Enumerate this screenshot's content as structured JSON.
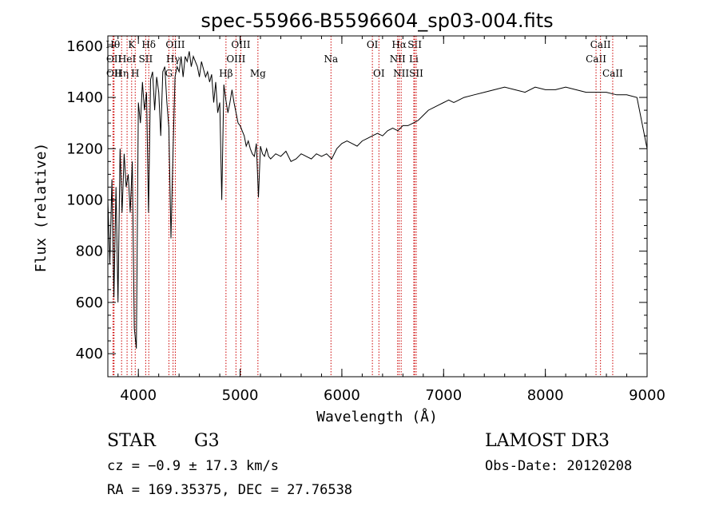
{
  "chart_data": {
    "type": "line",
    "title": "spec-55966-B5596604_sp03-004.fits",
    "xlabel": "Wavelength (Å)",
    "ylabel": "Flux (relative)",
    "xlim": [
      3700,
      9000
    ],
    "ylim": [
      310,
      1640
    ],
    "xticks": [
      4000,
      5000,
      6000,
      7000,
      8000,
      9000
    ],
    "yticks": [
      400,
      600,
      800,
      1000,
      1200,
      1400,
      1600
    ],
    "grid": false,
    "line_color": "#000000",
    "marker_color": "#cc0000",
    "series": [
      {
        "values_x": [
          3700,
          3720,
          3740,
          3760,
          3780,
          3800,
          3820,
          3840,
          3860,
          3880,
          3900,
          3920,
          3940,
          3960,
          3980,
          4000,
          4020,
          4040,
          4060,
          4080,
          4100,
          4120,
          4140,
          4160,
          4180,
          4200,
          4220,
          4240,
          4260,
          4280,
          4300,
          4320,
          4340,
          4360,
          4380,
          4400,
          4420,
          4440,
          4460,
          4480,
          4500,
          4520,
          4540,
          4560,
          4580,
          4600,
          4620,
          4640,
          4660,
          4680,
          4700,
          4720,
          4740,
          4760,
          4780,
          4800,
          4820,
          4840,
          4860,
          4880,
          4900,
          4920,
          4940,
          4960,
          4980,
          5000,
          5020,
          5040,
          5060,
          5080,
          5100,
          5120,
          5140,
          5160,
          5180,
          5200,
          5220,
          5240,
          5260,
          5280,
          5300,
          5350,
          5400,
          5450,
          5500,
          5550,
          5600,
          5650,
          5700,
          5750,
          5800,
          5850,
          5900,
          5950,
          6000,
          6050,
          6100,
          6150,
          6200,
          6250,
          6300,
          6350,
          6400,
          6450,
          6500,
          6550,
          6600,
          6650,
          6700,
          6750,
          6800,
          6850,
          6900,
          6950,
          7000,
          7050,
          7100,
          7200,
          7300,
          7400,
          7500,
          7600,
          7700,
          7800,
          7900,
          8000,
          8100,
          8200,
          8300,
          8400,
          8500,
          8600,
          8700,
          8800,
          8900,
          9000
        ],
        "values_y": [
          1000,
          750,
          1080,
          620,
          1050,
          600,
          1200,
          950,
          1180,
          1050,
          1100,
          950,
          1150,
          500,
          420,
          1380,
          1300,
          1460,
          1350,
          1420,
          950,
          1470,
          1500,
          1350,
          1480,
          1420,
          1250,
          1500,
          1520,
          1380,
          1280,
          850,
          1180,
          1480,
          1520,
          1500,
          1560,
          1480,
          1560,
          1540,
          1580,
          1520,
          1560,
          1540,
          1520,
          1480,
          1540,
          1510,
          1480,
          1500,
          1460,
          1490,
          1380,
          1460,
          1340,
          1380,
          1000,
          1450,
          1390,
          1340,
          1380,
          1430,
          1380,
          1340,
          1300,
          1290,
          1270,
          1250,
          1210,
          1230,
          1200,
          1180,
          1170,
          1220,
          1010,
          1210,
          1180,
          1170,
          1200,
          1170,
          1160,
          1180,
          1170,
          1190,
          1150,
          1160,
          1180,
          1170,
          1160,
          1180,
          1170,
          1180,
          1160,
          1200,
          1220,
          1230,
          1220,
          1210,
          1230,
          1240,
          1250,
          1260,
          1250,
          1270,
          1280,
          1270,
          1290,
          1290,
          1300,
          1310,
          1330,
          1350,
          1360,
          1370,
          1380,
          1390,
          1380,
          1400,
          1410,
          1420,
          1430,
          1440,
          1430,
          1420,
          1440,
          1430,
          1430,
          1440,
          1430,
          1420,
          1420,
          1420,
          1410,
          1410,
          1400,
          1200
        ]
      }
    ],
    "line_markers": [
      {
        "x": 3750,
        "label": "Hθ",
        "row": 0
      },
      {
        "x": 3760,
        "label": "OII",
        "row": 1
      },
      {
        "x": 3760,
        "label": "OII",
        "row": 2
      },
      {
        "x": 3835,
        "label": "Hη",
        "row": 2
      },
      {
        "x": 3889,
        "label": "HeI",
        "row": 1
      },
      {
        "x": 3934,
        "label": "K",
        "row": 0
      },
      {
        "x": 3969,
        "label": "H",
        "row": 2
      },
      {
        "x": 4072,
        "label": "SII",
        "row": 1
      },
      {
        "x": 4102,
        "label": "Hδ",
        "row": 0
      },
      {
        "x": 4300,
        "label": "G",
        "row": 2
      },
      {
        "x": 4341,
        "label": "Hγ",
        "row": 1
      },
      {
        "x": 4363,
        "label": "OIII",
        "row": 0
      },
      {
        "x": 4861,
        "label": "Hβ",
        "row": 2
      },
      {
        "x": 4959,
        "label": "OIII",
        "row": 1
      },
      {
        "x": 5007,
        "label": "OIII",
        "row": 0
      },
      {
        "x": 5175,
        "label": "Mg",
        "row": 2
      },
      {
        "x": 5893,
        "label": "Na",
        "row": 1
      },
      {
        "x": 6300,
        "label": "OI",
        "row": 0
      },
      {
        "x": 6364,
        "label": "OI",
        "row": 2
      },
      {
        "x": 6548,
        "label": "NII",
        "row": 1
      },
      {
        "x": 6563,
        "label": "Hα",
        "row": 0
      },
      {
        "x": 6583,
        "label": "NII",
        "row": 2
      },
      {
        "x": 6707,
        "label": "Li",
        "row": 1
      },
      {
        "x": 6716,
        "label": "SII",
        "row": 0
      },
      {
        "x": 6731,
        "label": "SII",
        "row": 2
      },
      {
        "x": 8498,
        "label": "CaII",
        "row": 1
      },
      {
        "x": 8542,
        "label": "CaII",
        "row": 0
      },
      {
        "x": 8662,
        "label": "CaII",
        "row": 2
      }
    ]
  },
  "info": {
    "class_label": "STAR",
    "subclass_label": "G3",
    "survey": "LAMOST DR3",
    "cz_text": "cz = −0.9 ± 17.3 km/s",
    "obs_date_text": "Obs-Date: 20120208",
    "coords_text": "RA = 169.35375, DEC =  27.76538"
  }
}
